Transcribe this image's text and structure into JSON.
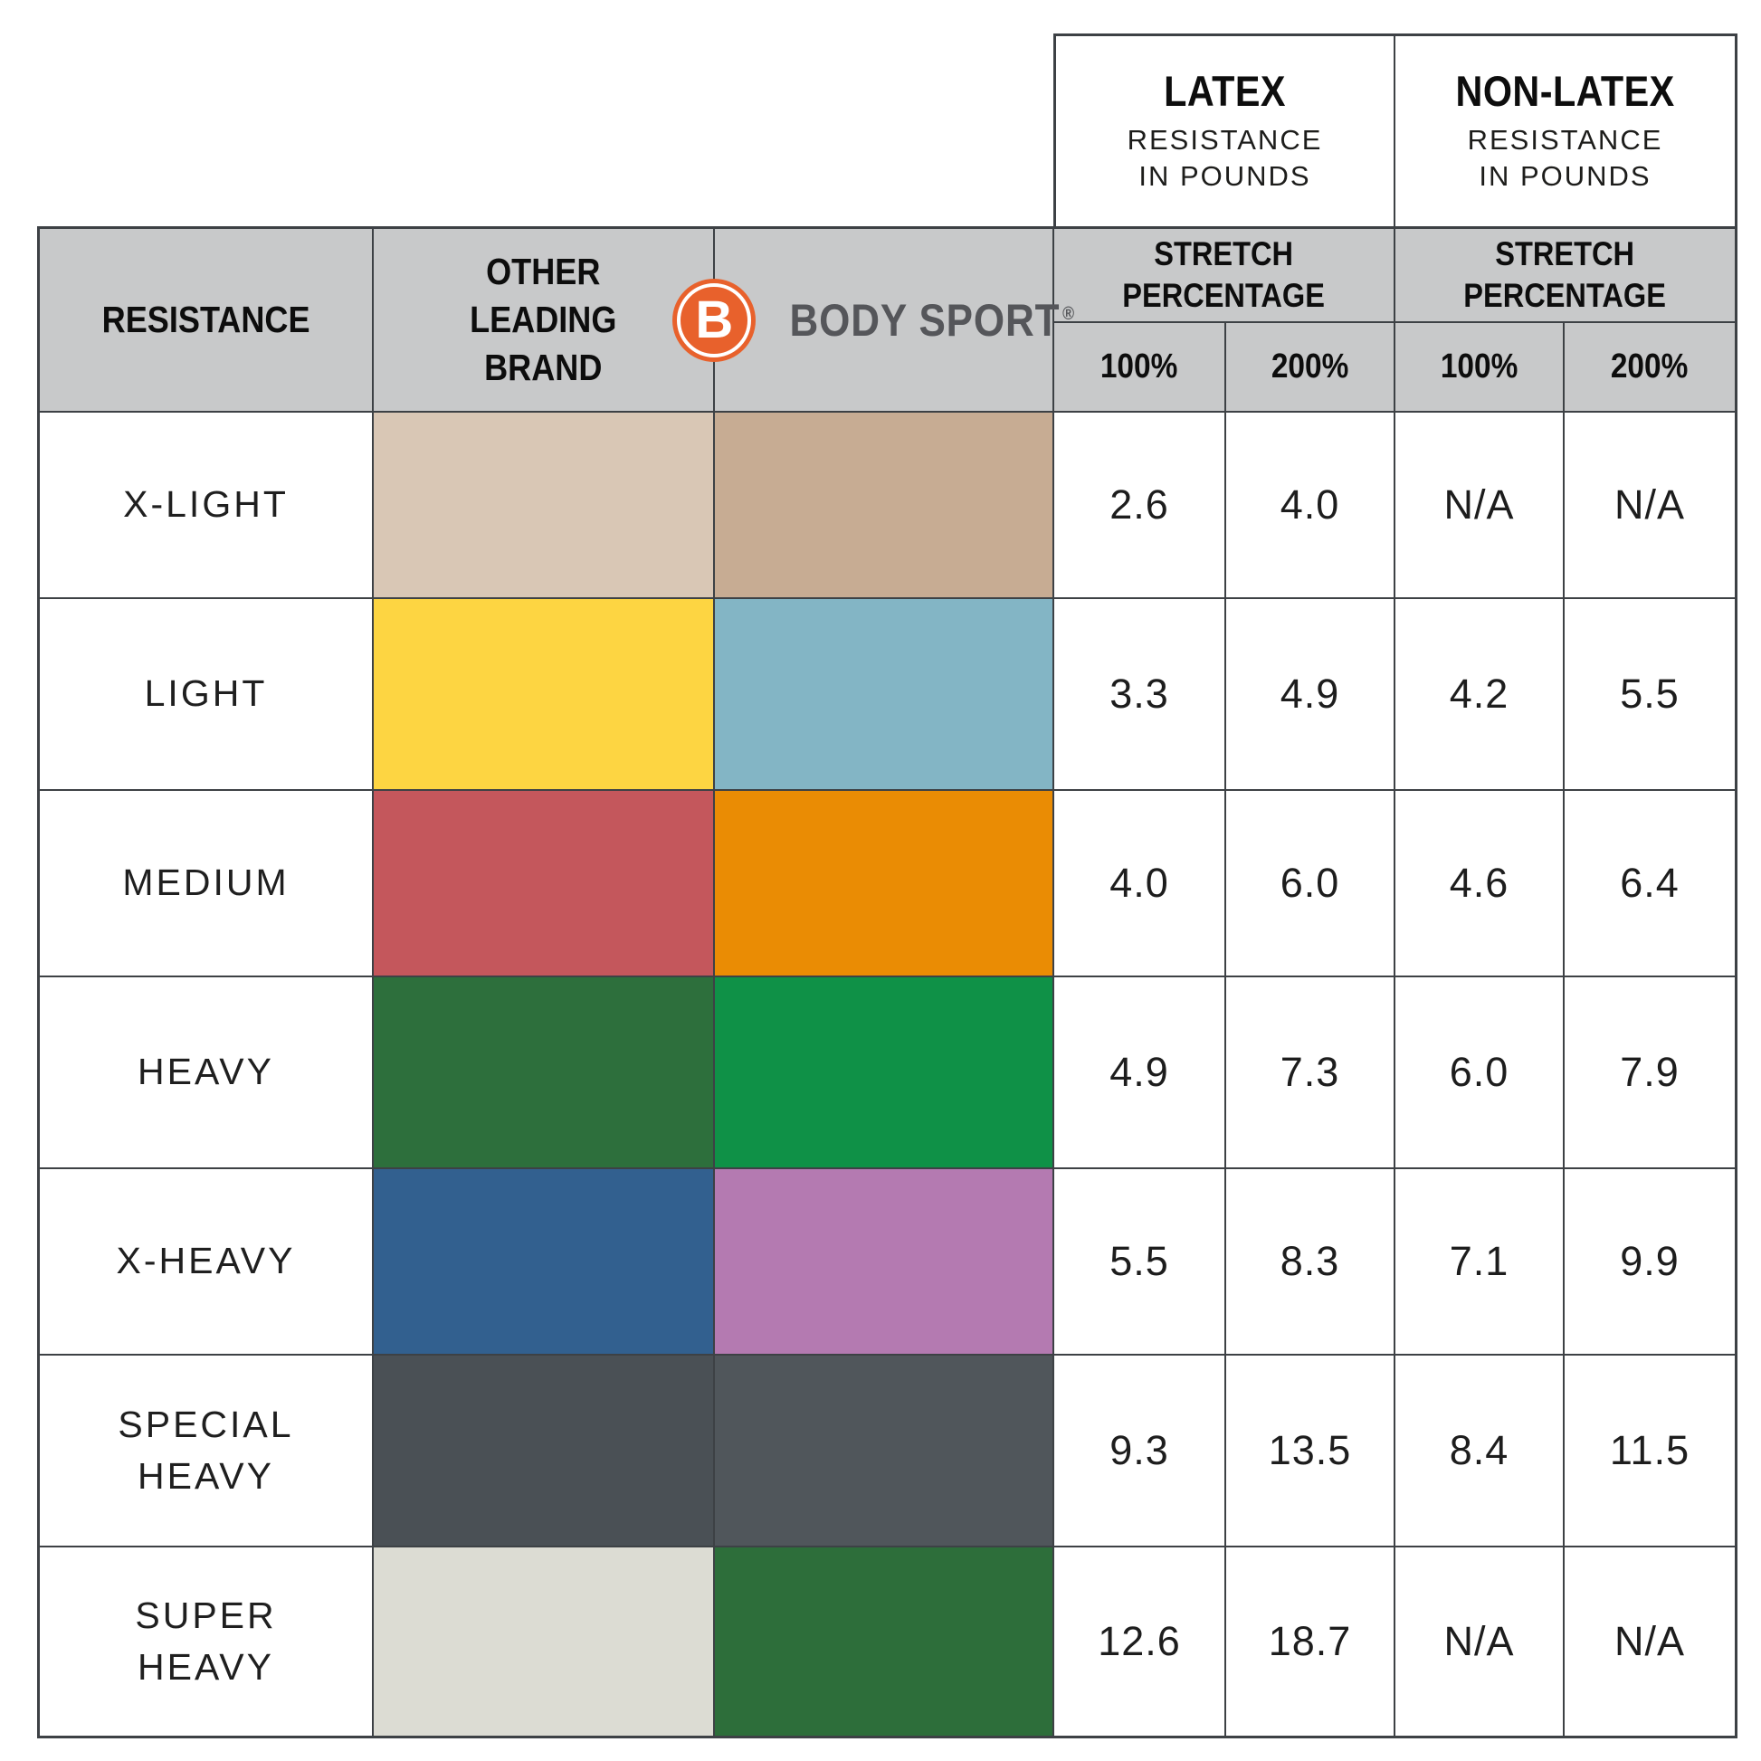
{
  "colors": {
    "background": "#ffffff",
    "header_bg": "#c8c9ca",
    "border": "#3d4145",
    "text": "#0d0d0d"
  },
  "chart_data": {
    "type": "table",
    "description": "Resistance band comparison chart: Body Sport vs other leading brand, resistance in pounds at stretch percentages",
    "column_groups": [
      {
        "title": "LATEX",
        "subtitle": "RESISTANCE\nIN POUNDS",
        "stretch_header": "STRETCH\nPERCENTAGE",
        "pct_columns": [
          "100%",
          "200%"
        ]
      },
      {
        "title": "NON-LATEX",
        "subtitle": "RESISTANCE\nIN POUNDS",
        "stretch_header": "STRETCH\nPERCENTAGE",
        "pct_columns": [
          "100%",
          "200%"
        ]
      }
    ],
    "header": {
      "resistance": "RESISTANCE",
      "other_brand": "OTHER\nLEADING\nBRAND"
    },
    "brand": {
      "name": "BODY SPORT",
      "registered": "®",
      "monogram": "B",
      "circle_color": "#e8612c",
      "text_color": "#55565a"
    },
    "rows": [
      {
        "resistance": "X-LIGHT",
        "other_brand_color": "#d9c7b5",
        "body_sport_color": "#c7ac93",
        "latex_100": "2.6",
        "latex_200": "4.0",
        "non_latex_100": "N/A",
        "non_latex_200": "N/A"
      },
      {
        "resistance": "LIGHT",
        "other_brand_color": "#fdd542",
        "body_sport_color": "#83b5c5",
        "latex_100": "3.3",
        "latex_200": "4.9",
        "non_latex_100": "4.2",
        "non_latex_200": "5.5"
      },
      {
        "resistance": "MEDIUM",
        "other_brand_color": "#c4575c",
        "body_sport_color": "#ea8c04",
        "latex_100": "4.0",
        "latex_200": "6.0",
        "non_latex_100": "4.6",
        "non_latex_200": "6.4"
      },
      {
        "resistance": "HEAVY",
        "other_brand_color": "#2d6f3c",
        "body_sport_color": "#0f9147",
        "latex_100": "4.9",
        "latex_200": "7.3",
        "non_latex_100": "6.0",
        "non_latex_200": "7.9"
      },
      {
        "resistance": "X-HEAVY",
        "other_brand_color": "#32608f",
        "body_sport_color": "#b47ab1",
        "latex_100": "5.5",
        "latex_200": "8.3",
        "non_latex_100": "7.1",
        "non_latex_200": "9.9"
      },
      {
        "resistance": "SPECIAL\nHEAVY",
        "other_brand_color": "#4a5055",
        "body_sport_color": "#50565b",
        "latex_100": "9.3",
        "latex_200": "13.5",
        "non_latex_100": "8.4",
        "non_latex_200": "11.5"
      },
      {
        "resistance": "SUPER\nHEAVY",
        "other_brand_color": "#dcdcd3",
        "body_sport_color": "#2d6e3a",
        "latex_100": "12.6",
        "latex_200": "18.7",
        "non_latex_100": "N/A",
        "non_latex_200": "N/A"
      }
    ]
  }
}
